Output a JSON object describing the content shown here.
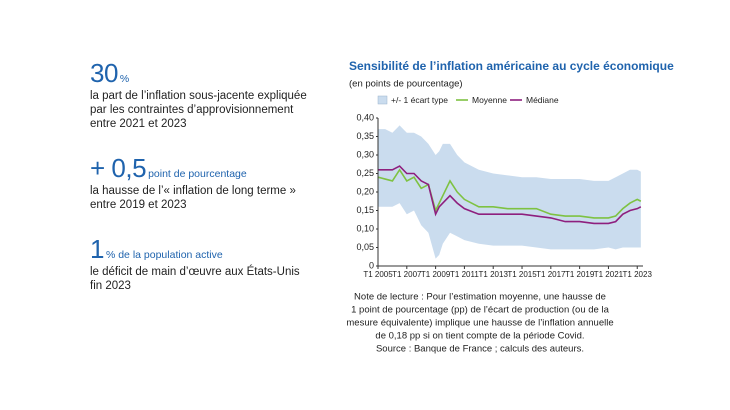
{
  "key_figures": [
    {
      "number": "30",
      "unit": "%",
      "lines": [
        "la part de l’inflation sous-jacente expliquée",
        "par les contraintes d’approvisionnement",
        "entre 2021 et 2023"
      ]
    },
    {
      "number": "+ 0,5",
      "unit": "point de pourcentage",
      "lines": [
        "la hausse de l’« inflation de long terme »",
        "entre 2019 et 2023"
      ]
    },
    {
      "number": "1",
      "unit": "% de la population active",
      "lines": [
        "le déficit de main d’œuvre aux États-Unis",
        "fin 2023"
      ]
    }
  ],
  "chart_data": {
    "type": "line",
    "title": "Sensibilité de l’inflation américaine au cycle économique",
    "subtitle": "(en points de pourcentage)",
    "x": [
      2005,
      2005.5,
      2006,
      2006.5,
      2007,
      2007.5,
      2008,
      2008.5,
      2009,
      2009.25,
      2009.5,
      2010,
      2010.5,
      2011,
      2012,
      2013,
      2014,
      2015,
      2016,
      2017,
      2018,
      2019,
      2020,
      2021,
      2021.5,
      2022,
      2022.5,
      2023,
      2023.25
    ],
    "band": {
      "name": "+/- 1 écart type",
      "color": "#cadcee",
      "upper": [
        0.37,
        0.37,
        0.36,
        0.38,
        0.36,
        0.36,
        0.35,
        0.33,
        0.3,
        0.31,
        0.33,
        0.33,
        0.3,
        0.28,
        0.26,
        0.25,
        0.245,
        0.24,
        0.24,
        0.235,
        0.235,
        0.235,
        0.23,
        0.23,
        0.24,
        0.25,
        0.26,
        0.26,
        0.255
      ],
      "lower": [
        0.16,
        0.16,
        0.16,
        0.17,
        0.14,
        0.15,
        0.11,
        0.09,
        0.02,
        0.03,
        0.06,
        0.09,
        0.08,
        0.07,
        0.06,
        0.055,
        0.055,
        0.055,
        0.05,
        0.045,
        0.045,
        0.045,
        0.045,
        0.05,
        0.045,
        0.05,
        0.05,
        0.05,
        0.05
      ]
    },
    "series": [
      {
        "name": "Moyenne",
        "color": "#7ec242",
        "values": [
          0.24,
          0.235,
          0.23,
          0.26,
          0.23,
          0.24,
          0.21,
          0.22,
          0.15,
          0.17,
          0.19,
          0.23,
          0.2,
          0.18,
          0.16,
          0.16,
          0.155,
          0.155,
          0.155,
          0.14,
          0.135,
          0.135,
          0.13,
          0.13,
          0.135,
          0.155,
          0.17,
          0.18,
          0.175
        ]
      },
      {
        "name": "Médiane",
        "color": "#8e1f7e",
        "values": [
          0.26,
          0.26,
          0.26,
          0.27,
          0.25,
          0.25,
          0.23,
          0.22,
          0.14,
          0.16,
          0.17,
          0.19,
          0.17,
          0.155,
          0.14,
          0.14,
          0.14,
          0.14,
          0.135,
          0.13,
          0.12,
          0.12,
          0.115,
          0.115,
          0.12,
          0.14,
          0.15,
          0.155,
          0.16
        ]
      }
    ],
    "xlim": [
      2005,
      2023.4
    ],
    "xticks": [
      {
        "value": 2005,
        "label": "T1 2005"
      },
      {
        "value": 2007,
        "label": "T1 2007"
      },
      {
        "value": 2009,
        "label": "T1 2009"
      },
      {
        "value": 2011,
        "label": "T1 2011"
      },
      {
        "value": 2013,
        "label": "T1 2013"
      },
      {
        "value": 2015,
        "label": "T1 2015"
      },
      {
        "value": 2017,
        "label": "T1 2017"
      },
      {
        "value": 2019,
        "label": "T1 2019"
      },
      {
        "value": 2021,
        "label": "T1 2021"
      },
      {
        "value": 2023,
        "label": "T1 2023"
      }
    ],
    "ylim": [
      0,
      0.4
    ],
    "yticks": [
      0,
      {
        "value": 0.05,
        "label": "0,05"
      },
      {
        "value": 0.1,
        "label": "0,10"
      },
      {
        "value": 0.15,
        "label": "0,15"
      },
      {
        "value": 0.2,
        "label": "0,20"
      },
      {
        "value": 0.25,
        "label": "0,25"
      },
      {
        "value": 0.3,
        "label": "0,30"
      },
      {
        "value": 0.35,
        "label": "0,35"
      },
      {
        "value": 0.4,
        "label": "0,40"
      }
    ],
    "note": [
      "Note de lecture : Pour l’estimation moyenne, une hausse de",
      "1 point de pourcentage (pp) de l’écart de production (ou de la",
      "mesure équivalente) implique une hausse de l’inflation annuelle",
      "de 0,18 pp si on tient compte de la période Covid.",
      "Source : Banque de France ; calculs des auteurs."
    ]
  }
}
